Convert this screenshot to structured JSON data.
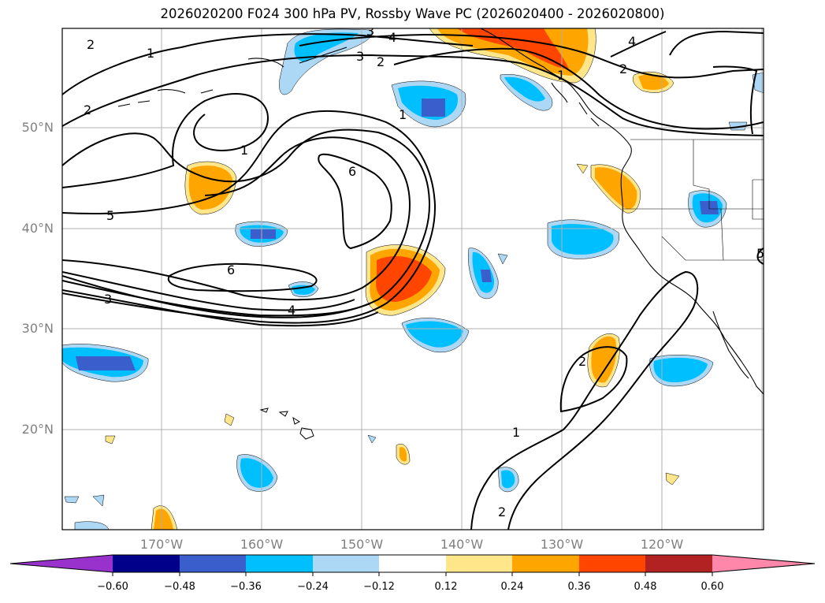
{
  "title": "2026020200 F024 300 hPa PV, Rossby Wave PC (2026020400 - 2026020800)",
  "lat_labels": [
    "50°N",
    "40°N",
    "30°N",
    "20°N"
  ],
  "lon_labels": [
    "170°W",
    "160°W",
    "150°W",
    "140°W",
    "130°W",
    "120°W"
  ],
  "contour_labels": [
    "2",
    "1",
    "2",
    "4",
    "3",
    "2",
    "3",
    "4",
    "5",
    "6",
    "6",
    "3",
    "4",
    "1",
    "1",
    "1",
    "2",
    "2",
    "1",
    "2",
    "5"
  ],
  "colorbar": {
    "ticks": [
      "−0.60",
      "−0.48",
      "−0.36",
      "−0.24",
      "−0.12",
      "0.12",
      "0.24",
      "0.36",
      "0.48",
      "0.60"
    ],
    "colors": [
      "#9932cc",
      "#00008b",
      "#3a5fcd",
      "#00bfff",
      "#add8f5",
      "#ffffff",
      "#ffe68a",
      "#ffa500",
      "#ff4500",
      "#b22222",
      "#ff88aa"
    ]
  },
  "shading": {
    "neg_light": "#add8f5",
    "neg_mid": "#00bfff",
    "neg_dark": "#3a5fcd",
    "pos_light": "#ffe68a",
    "pos_mid": "#ffa500",
    "pos_dark": "#ff4500"
  }
}
